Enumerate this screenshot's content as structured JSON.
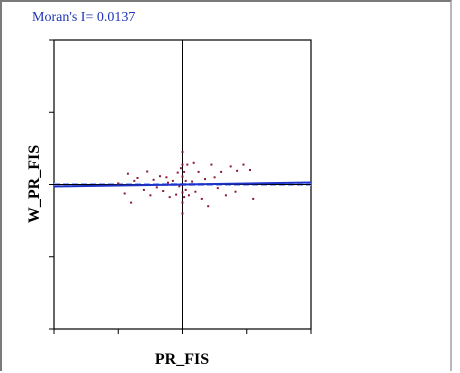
{
  "chart_data": {
    "type": "scatter",
    "title": "Moran's I= 0.0137",
    "xlabel": "PR_FIS",
    "ylabel": "W_PR_FIS",
    "xlim": [
      -4,
      4
    ],
    "ylim": [
      -4,
      4
    ],
    "grid": false,
    "regression_line": {
      "slope": 0.0137,
      "intercept": 0
    },
    "colors": {
      "points": "#8b1a3a",
      "regression": "#1f33c8",
      "reference": "#9bb0ff",
      "axes": "#000000",
      "title": "#1f33b8"
    },
    "points": [
      {
        "x": -2.0,
        "y": 0.03
      },
      {
        "x": -1.8,
        "y": -0.25
      },
      {
        "x": -1.7,
        "y": 0.3
      },
      {
        "x": -1.5,
        "y": 0.1
      },
      {
        "x": -1.6,
        "y": -0.5
      },
      {
        "x": -1.4,
        "y": 0.18
      },
      {
        "x": -1.2,
        "y": -0.15
      },
      {
        "x": -1.1,
        "y": 0.36
      },
      {
        "x": -1.0,
        "y": -0.3
      },
      {
        "x": -0.9,
        "y": 0.13
      },
      {
        "x": -0.8,
        "y": -0.08
      },
      {
        "x": -0.7,
        "y": 0.23
      },
      {
        "x": -0.6,
        "y": -0.18
      },
      {
        "x": -0.5,
        "y": 0.2
      },
      {
        "x": -0.45,
        "y": 0.05
      },
      {
        "x": -0.4,
        "y": -0.35
      },
      {
        "x": -0.3,
        "y": 0.1
      },
      {
        "x": -0.2,
        "y": -0.28
      },
      {
        "x": -0.15,
        "y": 0.33
      },
      {
        "x": -0.1,
        "y": -0.05
      },
      {
        "x": -0.05,
        "y": 0.45
      },
      {
        "x": 0.0,
        "y": 0.9
      },
      {
        "x": 0.0,
        "y": 0.55
      },
      {
        "x": 0.0,
        "y": 0.22
      },
      {
        "x": 0.0,
        "y": -0.22
      },
      {
        "x": 0.0,
        "y": -0.5
      },
      {
        "x": 0.0,
        "y": -0.8
      },
      {
        "x": 0.05,
        "y": 0.35
      },
      {
        "x": 0.05,
        "y": -0.35
      },
      {
        "x": 0.1,
        "y": 0.1
      },
      {
        "x": 0.1,
        "y": -0.15
      },
      {
        "x": 0.15,
        "y": 0.55
      },
      {
        "x": 0.2,
        "y": -0.3
      },
      {
        "x": 0.3,
        "y": 0.08
      },
      {
        "x": 0.35,
        "y": 0.6
      },
      {
        "x": 0.4,
        "y": -0.2
      },
      {
        "x": 0.5,
        "y": 0.35
      },
      {
        "x": 0.6,
        "y": -0.4
      },
      {
        "x": 0.7,
        "y": 0.15
      },
      {
        "x": 0.8,
        "y": -0.6
      },
      {
        "x": 0.9,
        "y": 0.55
      },
      {
        "x": 1.0,
        "y": 0.2
      },
      {
        "x": 1.1,
        "y": -0.1
      },
      {
        "x": 1.2,
        "y": 0.35
      },
      {
        "x": 1.35,
        "y": -0.3
      },
      {
        "x": 1.5,
        "y": 0.5
      },
      {
        "x": 1.65,
        "y": -0.2
      },
      {
        "x": 1.7,
        "y": 0.38
      },
      {
        "x": 1.9,
        "y": 0.55
      },
      {
        "x": 2.1,
        "y": 0.4
      },
      {
        "x": 2.2,
        "y": -0.4
      }
    ]
  }
}
